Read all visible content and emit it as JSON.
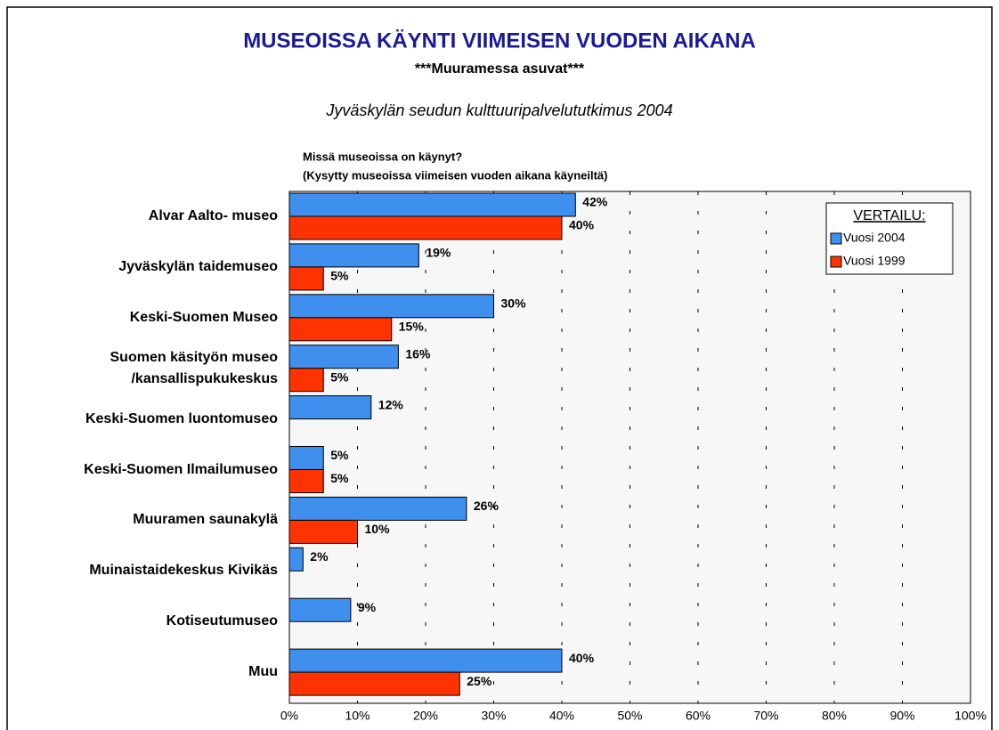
{
  "chart_data": {
    "type": "barh",
    "title": "MUSEOISSA KÄYNTI VIIMEISEN VUODEN AIKANA",
    "subtitle": "***Muuramessa asuvat***",
    "source": "Jyväskylän seudun kulttuuripalvelututkimus 2004",
    "annotations": [
      "Missä museoissa on käynyt?",
      "(Kysytty museoissa viimeisen vuoden aikana käyneiltä)"
    ],
    "categories": [
      "Alvar Aalto- museo",
      "Jyväskylän taidemuseo",
      "Keski-Suomen Museo",
      "Suomen käsityön museo\n/kansallispukukeskus",
      "Keski-Suomen luontomuseo",
      "Keski-Suomen Ilmailumuseo",
      "Muuramen saunakylä",
      "Muinaistaidekeskus Kivikäs",
      "Kotiseutumuseo",
      "Muu"
    ],
    "series": [
      {
        "name": "Vuosi 2004",
        "color": "#3f8fef",
        "values": [
          42,
          19,
          30,
          16,
          12,
          5,
          26,
          2,
          9,
          40
        ],
        "value_labels": [
          "42%",
          "19%",
          "30%",
          "16%",
          "12%",
          "5%",
          "26%",
          "2%",
          "9%",
          "40%"
        ]
      },
      {
        "name": "Vuosi 1999",
        "color": "#ff3300",
        "values": [
          40,
          5,
          15,
          5,
          null,
          5,
          10,
          null,
          null,
          25
        ],
        "value_labels": [
          "40%",
          "5%",
          "15%",
          "5%",
          null,
          "5%",
          "10%",
          null,
          null,
          "25%"
        ]
      }
    ],
    "legend_title": "VERTAILU:",
    "legend": "upper right",
    "grid": true,
    "xlim": [
      0,
      100
    ],
    "xticks": [
      {
        "value": 0,
        "label": "0%"
      },
      {
        "value": 10,
        "label": "10%"
      },
      {
        "value": 20,
        "label": "20%"
      },
      {
        "value": 30,
        "label": "30%"
      },
      {
        "value": 40,
        "label": "40%"
      },
      {
        "value": 50,
        "label": "50%"
      },
      {
        "value": 60,
        "label": "60%"
      },
      {
        "value": 70,
        "label": "70%"
      },
      {
        "value": 80,
        "label": "80%"
      },
      {
        "value": 90,
        "label": "90%"
      },
      {
        "value": 100,
        "label": "100%"
      }
    ]
  }
}
